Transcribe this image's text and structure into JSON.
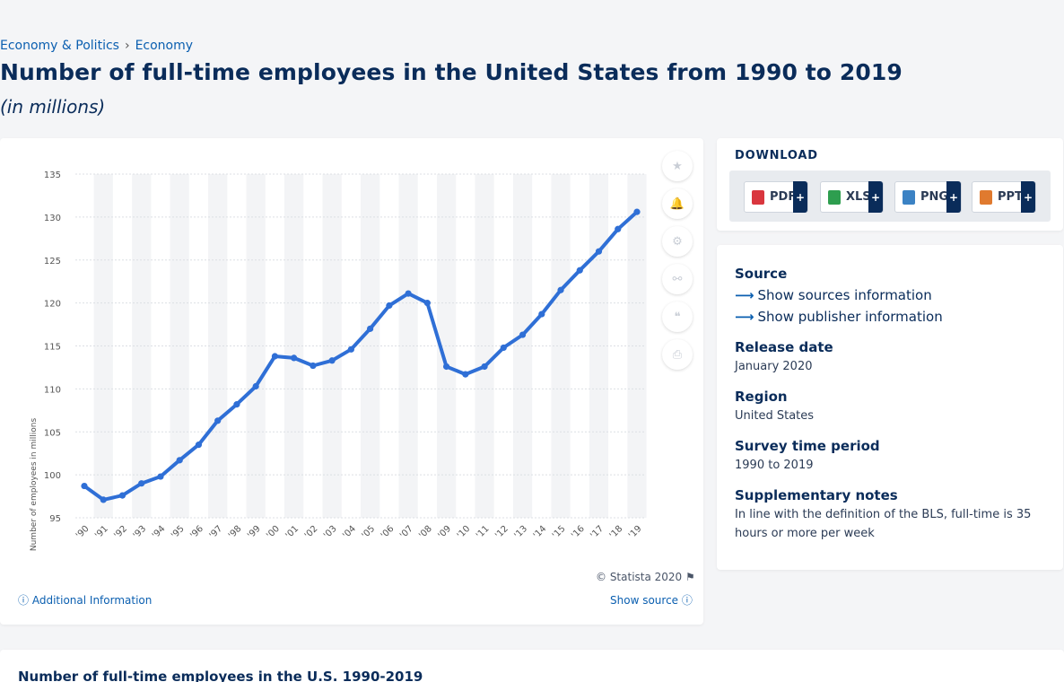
{
  "breadcrumb": {
    "items": [
      "Economy & Politics",
      "Economy"
    ],
    "separator": "›"
  },
  "page": {
    "title": "Number of full-time employees in the United States from 1990 to 2019",
    "subtitle": "(in millions)"
  },
  "chart_data": {
    "type": "line",
    "ylabel": "Number of employees in millions",
    "xlabel": "",
    "ylim": [
      95,
      135
    ],
    "yticks": [
      95,
      100,
      105,
      110,
      115,
      120,
      125,
      130,
      135
    ],
    "categories": [
      "'90",
      "'91",
      "'92",
      "'93",
      "'94",
      "'95",
      "'96",
      "'97",
      "'98",
      "'99",
      "'00",
      "'01",
      "'02",
      "'03",
      "'04",
      "'05",
      "'06",
      "'07",
      "'08",
      "'09",
      "'10",
      "'11",
      "'12",
      "'13",
      "'14",
      "'15",
      "'16",
      "'17",
      "'18",
      "'19"
    ],
    "values": [
      98.7,
      97.1,
      97.6,
      99.0,
      99.8,
      101.7,
      103.5,
      106.3,
      108.2,
      110.3,
      113.8,
      113.6,
      112.7,
      113.3,
      114.6,
      117.0,
      119.7,
      121.1,
      120.0,
      112.6,
      111.7,
      112.6,
      114.8,
      116.3,
      118.7,
      121.5,
      123.8,
      126.0,
      128.6,
      130.6
    ],
    "line_color": "#2f6fd6",
    "grid": true
  },
  "tools": {
    "icons": [
      "star-icon",
      "bell-icon",
      "gear-icon",
      "share-icon",
      "quote-icon",
      "print-icon"
    ]
  },
  "download": {
    "title": "DOWNLOAD",
    "buttons": [
      {
        "label": "PDF",
        "color": "#d9363e"
      },
      {
        "label": "XLS",
        "color": "#2e9e4f"
      },
      {
        "label": "PNG",
        "color": "#3b82c4"
      },
      {
        "label": "PPT",
        "color": "#e07a2f"
      }
    ],
    "plus": "+"
  },
  "info": {
    "source_label": "Source",
    "show_sources": "Show sources information",
    "show_publisher": "Show publisher information",
    "release_label": "Release date",
    "release_value": "January 2020",
    "region_label": "Region",
    "region_value": "United States",
    "survey_label": "Survey time period",
    "survey_value": "1990 to 2019",
    "notes_label": "Supplementary notes",
    "notes_value": "In line with the definition of the BLS, full-time is 35 hours or more per week"
  },
  "footer": {
    "copyright": "© Statista 2020",
    "additional": "Additional Information",
    "show_source": "Show source"
  },
  "bottom": {
    "title": "Number of full-time employees in the U.S. 1990-2019"
  }
}
